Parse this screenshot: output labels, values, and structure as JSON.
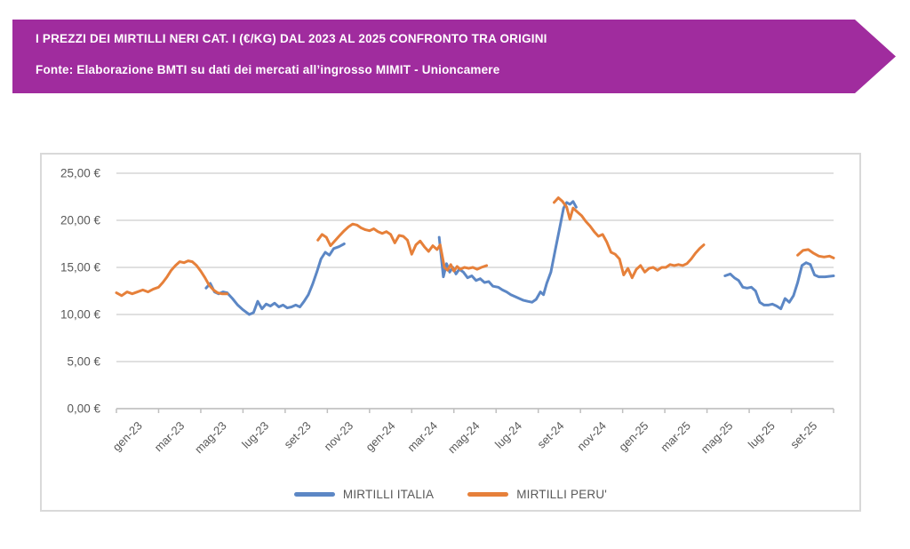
{
  "banner": {
    "title": "I PREZZI DEI MIRTILLI NERI CAT. I (€/KG) DAL 2023 AL 2025 CONFRONTO TRA ORIGINI",
    "source": "Fonte: Elaborazione BMTI su dati dei mercati all’ingrosso MIMIT - Unioncamere",
    "background_color": "#A02C9E",
    "text_color": "#FFFFFF"
  },
  "chart_data": {
    "type": "line",
    "title": "",
    "xlabel": "",
    "ylabel": "",
    "x_unit": "months since gen-23 (weekly data points)",
    "ylim": [
      0,
      25
    ],
    "xlim_months": [
      0,
      34
    ],
    "grid": true,
    "legend_position": "bottom",
    "y_ticks": [
      {
        "value": 0,
        "label": "0,00 €"
      },
      {
        "value": 5,
        "label": "5,00 €"
      },
      {
        "value": 10,
        "label": "10,00 €"
      },
      {
        "value": 15,
        "label": "15,00 €"
      },
      {
        "value": 20,
        "label": "20,00 €"
      },
      {
        "value": 25,
        "label": "25,00 €"
      }
    ],
    "x_tick_labels": [
      "gen-23",
      "mar-23",
      "mag-23",
      "lug-23",
      "set-23",
      "nov-23",
      "gen-24",
      "mar-24",
      "mag-24",
      "lug-24",
      "set-24",
      "nov-24",
      "gen-25",
      "mar-25",
      "mag-25",
      "lug-25",
      "set-25"
    ],
    "x_tick_boundary_step_months": 2,
    "series": [
      {
        "name": "MIRTILLI ITALIA",
        "color": "#5C87C5",
        "segments": [
          [
            [
              4.25,
              12.8
            ],
            [
              4.45,
              13.3
            ],
            [
              4.65,
              12.4
            ],
            [
              4.85,
              12.2
            ],
            [
              5.05,
              12.4
            ],
            [
              5.25,
              12.3
            ],
            [
              5.5,
              11.7
            ],
            [
              5.75,
              11.0
            ],
            [
              6.0,
              10.5
            ],
            [
              6.3,
              10.0
            ],
            [
              6.5,
              10.2
            ],
            [
              6.7,
              11.4
            ],
            [
              6.9,
              10.6
            ],
            [
              7.1,
              11.1
            ],
            [
              7.3,
              10.9
            ],
            [
              7.5,
              11.2
            ],
            [
              7.7,
              10.8
            ],
            [
              7.9,
              11.0
            ],
            [
              8.1,
              10.7
            ],
            [
              8.3,
              10.8
            ],
            [
              8.5,
              11.0
            ],
            [
              8.7,
              10.8
            ],
            [
              8.9,
              11.4
            ],
            [
              9.1,
              12.1
            ],
            [
              9.3,
              13.2
            ],
            [
              9.5,
              14.5
            ],
            [
              9.7,
              15.9
            ],
            [
              9.9,
              16.6
            ],
            [
              10.1,
              16.3
            ],
            [
              10.3,
              17.0
            ],
            [
              10.55,
              17.2
            ],
            [
              10.8,
              17.5
            ]
          ],
          [
            [
              15.3,
              18.2
            ],
            [
              15.5,
              14.0
            ],
            [
              15.65,
              15.4
            ],
            [
              15.8,
              14.5
            ],
            [
              15.95,
              15.0
            ],
            [
              16.1,
              14.3
            ],
            [
              16.25,
              14.8
            ],
            [
              16.45,
              14.5
            ],
            [
              16.65,
              13.9
            ],
            [
              16.85,
              14.1
            ],
            [
              17.05,
              13.6
            ],
            [
              17.25,
              13.8
            ],
            [
              17.45,
              13.4
            ],
            [
              17.65,
              13.5
            ],
            [
              17.85,
              13.0
            ],
            [
              18.1,
              12.9
            ],
            [
              18.3,
              12.6
            ],
            [
              18.5,
              12.4
            ],
            [
              18.7,
              12.1
            ],
            [
              18.9,
              11.9
            ],
            [
              19.1,
              11.7
            ],
            [
              19.3,
              11.5
            ],
            [
              19.5,
              11.4
            ],
            [
              19.7,
              11.3
            ],
            [
              19.9,
              11.6
            ],
            [
              20.1,
              12.4
            ],
            [
              20.25,
              12.1
            ],
            [
              20.4,
              13.3
            ],
            [
              20.6,
              14.5
            ],
            [
              20.8,
              16.8
            ],
            [
              21.0,
              19.0
            ],
            [
              21.2,
              21.3
            ],
            [
              21.35,
              21.9
            ],
            [
              21.5,
              21.7
            ],
            [
              21.65,
              22.0
            ],
            [
              21.8,
              21.4
            ]
          ],
          [
            [
              28.85,
              14.1
            ],
            [
              29.1,
              14.3
            ],
            [
              29.3,
              13.9
            ],
            [
              29.5,
              13.6
            ],
            [
              29.7,
              12.9
            ],
            [
              29.9,
              12.8
            ],
            [
              30.1,
              12.9
            ],
            [
              30.3,
              12.5
            ],
            [
              30.5,
              11.3
            ],
            [
              30.7,
              11.0
            ],
            [
              30.9,
              11.0
            ],
            [
              31.1,
              11.1
            ],
            [
              31.3,
              10.9
            ],
            [
              31.5,
              10.6
            ],
            [
              31.7,
              11.7
            ],
            [
              31.9,
              11.3
            ],
            [
              32.1,
              12.0
            ],
            [
              32.3,
              13.4
            ],
            [
              32.5,
              15.2
            ],
            [
              32.7,
              15.5
            ],
            [
              32.9,
              15.3
            ],
            [
              33.1,
              14.2
            ],
            [
              33.3,
              14.0
            ],
            [
              33.6,
              14.0
            ],
            [
              34.0,
              14.1
            ]
          ]
        ]
      },
      {
        "name": "MIRTILLI PERU'",
        "color": "#E6803A",
        "segments": [
          [
            [
              0,
              12.3
            ],
            [
              0.25,
              12.0
            ],
            [
              0.5,
              12.4
            ],
            [
              0.75,
              12.2
            ],
            [
              1.0,
              12.4
            ],
            [
              1.25,
              12.6
            ],
            [
              1.5,
              12.4
            ],
            [
              1.75,
              12.7
            ],
            [
              2.0,
              12.9
            ],
            [
              2.2,
              13.4
            ],
            [
              2.4,
              14.0
            ],
            [
              2.6,
              14.7
            ],
            [
              2.8,
              15.2
            ],
            [
              3.0,
              15.6
            ],
            [
              3.2,
              15.5
            ],
            [
              3.4,
              15.7
            ],
            [
              3.6,
              15.6
            ],
            [
              3.8,
              15.2
            ],
            [
              4.0,
              14.6
            ],
            [
              4.2,
              13.9
            ],
            [
              4.4,
              13.1
            ],
            [
              4.6,
              12.6
            ],
            [
              4.8,
              12.3
            ],
            [
              5.0,
              12.2
            ],
            [
              5.25,
              12.2
            ]
          ],
          [
            [
              9.55,
              17.9
            ],
            [
              9.75,
              18.5
            ],
            [
              9.95,
              18.2
            ],
            [
              10.15,
              17.3
            ],
            [
              10.35,
              17.8
            ],
            [
              10.55,
              18.3
            ],
            [
              10.8,
              18.9
            ],
            [
              11.0,
              19.3
            ],
            [
              11.2,
              19.6
            ],
            [
              11.4,
              19.5
            ],
            [
              11.6,
              19.2
            ],
            [
              11.8,
              19.0
            ],
            [
              12.0,
              18.9
            ],
            [
              12.2,
              19.1
            ],
            [
              12.4,
              18.8
            ],
            [
              12.6,
              18.6
            ],
            [
              12.8,
              18.8
            ],
            [
              13.0,
              18.5
            ],
            [
              13.2,
              17.6
            ],
            [
              13.4,
              18.4
            ],
            [
              13.6,
              18.3
            ],
            [
              13.8,
              17.9
            ],
            [
              14.0,
              16.4
            ],
            [
              14.2,
              17.4
            ],
            [
              14.4,
              17.8
            ],
            [
              14.6,
              17.2
            ],
            [
              14.8,
              16.7
            ],
            [
              15.0,
              17.3
            ],
            [
              15.2,
              16.9
            ],
            [
              15.35,
              17.4
            ],
            [
              15.55,
              15.0
            ],
            [
              15.7,
              14.7
            ],
            [
              15.85,
              15.3
            ],
            [
              16.0,
              14.6
            ],
            [
              16.15,
              15.1
            ],
            [
              16.3,
              14.8
            ],
            [
              16.5,
              15.0
            ],
            [
              16.7,
              14.9
            ],
            [
              16.9,
              15.0
            ],
            [
              17.1,
              14.8
            ],
            [
              17.3,
              15.0
            ],
            [
              17.55,
              15.2
            ]
          ],
          [
            [
              20.75,
              21.9
            ],
            [
              20.95,
              22.4
            ],
            [
              21.15,
              22.0
            ],
            [
              21.35,
              21.4
            ],
            [
              21.5,
              20.1
            ],
            [
              21.65,
              21.3
            ],
            [
              21.85,
              20.9
            ],
            [
              22.05,
              20.5
            ],
            [
              22.25,
              19.9
            ],
            [
              22.45,
              19.4
            ],
            [
              22.65,
              18.8
            ],
            [
              22.85,
              18.3
            ],
            [
              23.05,
              18.5
            ],
            [
              23.25,
              17.7
            ],
            [
              23.45,
              16.6
            ],
            [
              23.65,
              16.4
            ],
            [
              23.85,
              15.9
            ],
            [
              24.05,
              14.2
            ],
            [
              24.25,
              14.9
            ],
            [
              24.45,
              13.9
            ],
            [
              24.65,
              14.8
            ],
            [
              24.85,
              15.2
            ],
            [
              25.05,
              14.5
            ],
            [
              25.25,
              14.9
            ],
            [
              25.45,
              15.0
            ],
            [
              25.65,
              14.7
            ],
            [
              25.85,
              15.0
            ],
            [
              26.05,
              15.0
            ],
            [
              26.25,
              15.3
            ],
            [
              26.45,
              15.2
            ],
            [
              26.65,
              15.3
            ],
            [
              26.85,
              15.2
            ],
            [
              27.05,
              15.4
            ],
            [
              27.25,
              15.9
            ],
            [
              27.45,
              16.5
            ],
            [
              27.65,
              17.0
            ],
            [
              27.85,
              17.4
            ]
          ],
          [
            [
              32.3,
              16.3
            ],
            [
              32.55,
              16.8
            ],
            [
              32.8,
              16.9
            ],
            [
              33.05,
              16.5
            ],
            [
              33.3,
              16.2
            ],
            [
              33.55,
              16.1
            ],
            [
              33.8,
              16.2
            ],
            [
              34.0,
              16.0
            ]
          ]
        ]
      }
    ],
    "style": {
      "gridline_color": "#D6D6D6",
      "axis_color": "#BFBFBF",
      "tick_text_color": "#595959",
      "line_width": 3
    }
  },
  "legend": {
    "items": [
      {
        "label": "MIRTILLI ITALIA",
        "color": "#5C87C5"
      },
      {
        "label": "MIRTILLI PERU'",
        "color": "#E6803A"
      }
    ]
  }
}
